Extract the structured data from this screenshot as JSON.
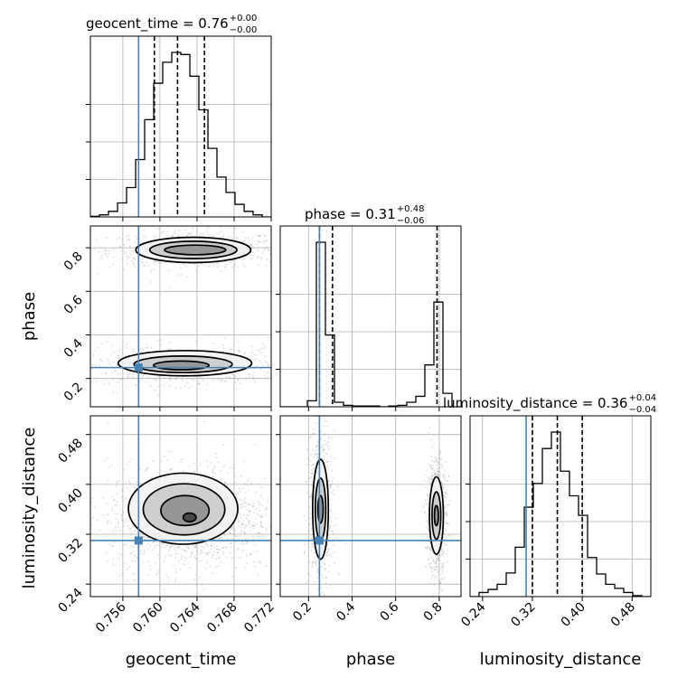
{
  "chart_data": {
    "type": "corner",
    "parameters": [
      "geocent_time",
      "phase",
      "luminosity_distance"
    ],
    "truth": {
      "geocent_time": 0.7577,
      "phase": 0.25,
      "luminosity_distance": 0.31
    },
    "titles": [
      {
        "param": "geocent_time",
        "text": "geocent_time = 0.76",
        "sup": "+0.00",
        "sub": "−0.00"
      },
      {
        "param": "phase",
        "text": "phase = 0.31",
        "sup": "+0.48",
        "sub": "−0.06"
      },
      {
        "param": "luminosity_distance",
        "text": "luminosity_distance = 0.36",
        "sup": "+0.04",
        "sub": "−0.04"
      }
    ],
    "ranges": {
      "geocent_time": [
        0.7525,
        0.772
      ],
      "phase": [
        0.07,
        0.9
      ],
      "luminosity_distance": [
        0.22,
        0.51
      ]
    },
    "ticks": {
      "geocent_time": [
        0.756,
        0.76,
        0.764,
        0.768,
        0.772
      ],
      "phase": [
        0.2,
        0.4,
        0.6,
        0.8
      ],
      "luminosity_distance": [
        0.24,
        0.32,
        0.4,
        0.48
      ]
    },
    "tick_labels": {
      "geocent_time": [
        "0.756",
        "0.760",
        "0.764",
        "0.768",
        "0.772"
      ],
      "phase": [
        "0.2",
        "0.4",
        "0.6",
        "0.8"
      ],
      "luminosity_distance": [
        "0.24",
        "0.32",
        "0.40",
        "0.48"
      ]
    },
    "quantiles": {
      "geocent_time": [
        0.7594,
        0.7619,
        0.7648
      ],
      "phase": [
        0.25,
        0.31,
        0.79
      ],
      "luminosity_distance": [
        0.32,
        0.36,
        0.4
      ]
    },
    "hist_geocent_time": {
      "edges": [
        0.7525,
        0.75348,
        0.75445,
        0.75543,
        0.7564,
        0.75738,
        0.75835,
        0.75933,
        0.7603,
        0.76128,
        0.76225,
        0.76323,
        0.7642,
        0.76518,
        0.76615,
        0.76713,
        0.7681,
        0.76908,
        0.77005,
        0.77103,
        0.772
      ],
      "counts": [
        1,
        3,
        8,
        20,
        42,
        82,
        139,
        191,
        221,
        235,
        232,
        201,
        153,
        98,
        57,
        35,
        18,
        8,
        3,
        0
      ]
    },
    "hist_phase": {
      "edges": [
        0.07,
        0.1115,
        0.153,
        0.1945,
        0.236,
        0.2775,
        0.319,
        0.3605,
        0.402,
        0.4435,
        0.485,
        0.5265,
        0.568,
        0.6095,
        0.651,
        0.6925,
        0.734,
        0.7755,
        0.817,
        0.8585,
        0.9
      ],
      "counts": [
        0,
        0,
        0,
        8,
        220,
        96,
        6,
        2,
        1,
        1,
        1,
        0,
        1,
        2,
        6,
        14,
        56,
        140,
        18,
        0
      ]
    },
    "hist_luminosity_distance": {
      "edges": [
        0.22,
        0.2345,
        0.249,
        0.2635,
        0.278,
        0.2925,
        0.307,
        0.3215,
        0.336,
        0.3505,
        0.365,
        0.3795,
        0.394,
        0.4085,
        0.423,
        0.4375,
        0.452,
        0.4665,
        0.481,
        0.4955,
        0.51
      ],
      "counts": [
        0,
        4,
        7,
        12,
        23,
        48,
        87,
        110,
        144,
        160,
        122,
        98,
        79,
        38,
        22,
        12,
        8,
        4,
        1,
        0
      ]
    },
    "contours": {
      "phase_vs_geocent_time": [
        {
          "cx": 0.7638,
          "cy": 0.79,
          "rx": 0.0033,
          "ry": 0.022
        },
        {
          "cx": 0.7636,
          "cy": 0.79,
          "rx": 0.0047,
          "ry": 0.04
        },
        {
          "cx": 0.7636,
          "cy": 0.79,
          "rx": 0.0062,
          "ry": 0.058
        },
        {
          "cx": 0.7623,
          "cy": 0.26,
          "rx": 0.003,
          "ry": 0.02
        },
        {
          "cx": 0.7625,
          "cy": 0.265,
          "rx": 0.0053,
          "ry": 0.038
        },
        {
          "cx": 0.7627,
          "cy": 0.27,
          "rx": 0.0072,
          "ry": 0.058
        }
      ],
      "luminosity_distance_vs_geocent_time": [
        {
          "cx": 0.7632,
          "cy": 0.347,
          "rx": 0.0007,
          "ry": 0.007
        },
        {
          "cx": 0.7627,
          "cy": 0.358,
          "rx": 0.0026,
          "ry": 0.024
        },
        {
          "cx": 0.7626,
          "cy": 0.36,
          "rx": 0.0044,
          "ry": 0.041
        },
        {
          "cx": 0.7625,
          "cy": 0.361,
          "rx": 0.0059,
          "ry": 0.057
        }
      ],
      "luminosity_distance_vs_phase": [
        {
          "cx": 0.255,
          "cy": 0.36,
          "rx": 0.012,
          "ry": 0.022
        },
        {
          "cx": 0.255,
          "cy": 0.36,
          "rx": 0.024,
          "ry": 0.05
        },
        {
          "cx": 0.255,
          "cy": 0.36,
          "rx": 0.036,
          "ry": 0.08
        },
        {
          "cx": 0.787,
          "cy": 0.35,
          "rx": 0.009,
          "ry": 0.016
        },
        {
          "cx": 0.787,
          "cy": 0.35,
          "rx": 0.02,
          "ry": 0.038
        },
        {
          "cx": 0.787,
          "cy": 0.35,
          "rx": 0.032,
          "ry": 0.062
        }
      ]
    },
    "colors": {
      "truth": "#4682b4",
      "hist": "#000000",
      "grid": "#b0b0b0",
      "points": "#9a9a9a"
    }
  }
}
